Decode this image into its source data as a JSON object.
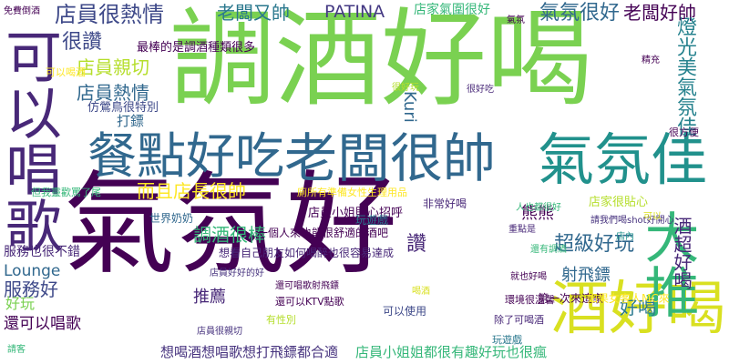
{
  "words": [
    {
      "id": "w01",
      "text": "氣氛好",
      "color": "#440154"
    },
    {
      "id": "w02",
      "text": "調酒好喝",
      "color": "#7ad151"
    },
    {
      "id": "w03",
      "text": "老闆很帥",
      "color": "#31688e"
    },
    {
      "id": "w04",
      "text": "餐點好吃",
      "color": "#31688e"
    },
    {
      "id": "w05",
      "text": "氣氛佳",
      "color": "#21918c"
    },
    {
      "id": "w06",
      "text": "酒好喝",
      "color": "#d9e021"
    },
    {
      "id": "w07",
      "text": "可以唱歌",
      "color": "#482878"
    },
    {
      "id": "w08",
      "text": "大推",
      "color": "#35b779"
    },
    {
      "id": "w09",
      "text": "店員很熱情",
      "color": "#3e4989"
    },
    {
      "id": "w10",
      "text": "老闆又帥",
      "color": "#2a788e"
    },
    {
      "id": "w11",
      "text": "PATINA",
      "color": "#443983"
    },
    {
      "id": "w12",
      "text": "店家氣圍很好",
      "color": "#35b779"
    },
    {
      "id": "w13",
      "text": "氣氛很好",
      "color": "#31688e"
    },
    {
      "id": "w14",
      "text": "老闆好帥",
      "color": "#440154"
    },
    {
      "id": "w15",
      "text": "很讚",
      "color": "#3e4989"
    },
    {
      "id": "w16",
      "text": "店員親切",
      "color": "#b5de2b"
    },
    {
      "id": "w17",
      "text": "店員熱情",
      "color": "#31688e"
    },
    {
      "id": "w18",
      "text": "調酒很棒",
      "color": "#35b779"
    },
    {
      "id": "w19",
      "text": "而且店長很帥",
      "color": "#fde725"
    },
    {
      "id": "w20",
      "text": "超級好玩",
      "color": "#31688e"
    },
    {
      "id": "w21",
      "text": "射飛鏢",
      "color": "#31688e"
    },
    {
      "id": "w22",
      "text": "服務好",
      "color": "#3e4989"
    },
    {
      "id": "w23",
      "text": "Lounge",
      "color": "#31688e"
    },
    {
      "id": "w24",
      "text": "推薦",
      "color": "#482878"
    },
    {
      "id": "w25",
      "text": "好玩",
      "color": "#7ad151"
    },
    {
      "id": "w26",
      "text": "好喝",
      "color": "#2a788e"
    },
    {
      "id": "w27",
      "text": "燈光美氣氛佳",
      "color": "#26828e"
    },
    {
      "id": "w28",
      "text": "酒超好喝",
      "color": "#482878"
    },
    {
      "id": "w29",
      "text": "還可以唱歌",
      "color": "#440154"
    },
    {
      "id": "w30",
      "text": "想喝酒想唱歌想打飛鏢都合適",
      "color": "#46327e"
    },
    {
      "id": "w31",
      "text": "店員小姐姐都很有趣好玩也很瘋",
      "color": "#35b779"
    },
    {
      "id": "w32",
      "text": "讚",
      "color": "#482878"
    },
    {
      "id": "w33",
      "text": "熊熊",
      "color": "#440154"
    },
    {
      "id": "w34",
      "text": "打鏢",
      "color": "#31688e"
    },
    {
      "id": "w35",
      "text": "服務也很不錯",
      "color": "#482878"
    },
    {
      "id": "w36",
      "text": "Kuri",
      "color": "#31688e"
    },
    {
      "id": "w37",
      "text": "最棒的是調酒種類很多",
      "color": "#440154"
    },
    {
      "id": "w38",
      "text": "仿鶯鳥很特別",
      "color": "#3e4989"
    },
    {
      "id": "w39",
      "text": "店員小姐貼心招呼",
      "color": "#440154"
    },
    {
      "id": "w40",
      "text": "一個人來也能很舒適的酒吧",
      "color": "#440154"
    },
    {
      "id": "w41",
      "text": "想看自己朋友如何喝醉也很容易達成",
      "color": "#482878"
    },
    {
      "id": "w42",
      "text": "非常好喝",
      "color": "#482878"
    },
    {
      "id": "w43",
      "text": "店家很貼心",
      "color": "#b5de2b"
    },
    {
      "id": "w44",
      "text": "第一次來這家",
      "color": "#440154"
    },
    {
      "id": "w45",
      "text": "如果女客人MC來",
      "color": "#fde725"
    },
    {
      "id": "w46",
      "text": "可以使用",
      "color": "#3e4989"
    },
    {
      "id": "w47",
      "text": "世界奶奶",
      "color": "#31688e"
    },
    {
      "id": "w48",
      "text": "玩遊戲",
      "color": "#2a788e"
    },
    {
      "id": "w49",
      "text": "廁所有準備女性生理用品",
      "color": "#fde725"
    },
    {
      "id": "w50",
      "text": "但我靈歡罵了尾",
      "color": "#35b779"
    },
    {
      "id": "w51",
      "text": "很方便",
      "color": "#440154"
    },
    {
      "id": "w52",
      "text": "精充",
      "color": "#440154"
    },
    {
      "id": "w53",
      "text": "還可唱歌射飛鏢",
      "color": "#440154"
    },
    {
      "id": "w54",
      "text": "有性別",
      "color": "#b5de2b"
    },
    {
      "id": "w55",
      "text": "還可以KTV點歌",
      "color": "#440154"
    },
    {
      "id": "w56",
      "text": "除了可喝酒",
      "color": "#482878"
    },
    {
      "id": "w57",
      "text": "環境很溫馨",
      "color": "#440154"
    },
    {
      "id": "w58",
      "text": "玩遊戲",
      "color": "#2a788e"
    },
    {
      "id": "w59",
      "text": "就也好喝",
      "color": "#440154"
    },
    {
      "id": "w60",
      "text": "人也都很好",
      "color": "#35b779"
    },
    {
      "id": "w61",
      "text": "重點是",
      "color": "#482878"
    },
    {
      "id": "w62",
      "text": "還有調酒",
      "color": "#35b779"
    },
    {
      "id": "w63",
      "text": "請我們喝shot好開心",
      "color": "#46327e"
    },
    {
      "id": "w64",
      "text": "免費倒酒",
      "color": "#440154"
    },
    {
      "id": "w65",
      "text": "很好玩",
      "color": "#b5de2b"
    },
    {
      "id": "w66",
      "text": "很好吃",
      "color": "#482878"
    },
    {
      "id": "w67",
      "text": "可以",
      "color": "#d9e021"
    },
    {
      "id": "w68",
      "text": "可以喝酒",
      "color": "#fde725"
    },
    {
      "id": "w69",
      "text": "請客",
      "color": "#35b779"
    },
    {
      "id": "w70",
      "text": "氣氛",
      "color": "#440154"
    },
    {
      "id": "w71",
      "text": "店內",
      "color": "#21918c"
    },
    {
      "id": "w72",
      "text": "店員很親切",
      "color": "#46327e"
    },
    {
      "id": "w73",
      "text": "店員好好的好",
      "color": "#46327e"
    },
    {
      "id": "w74",
      "text": "喝酒",
      "color": "#d9e021"
    }
  ]
}
